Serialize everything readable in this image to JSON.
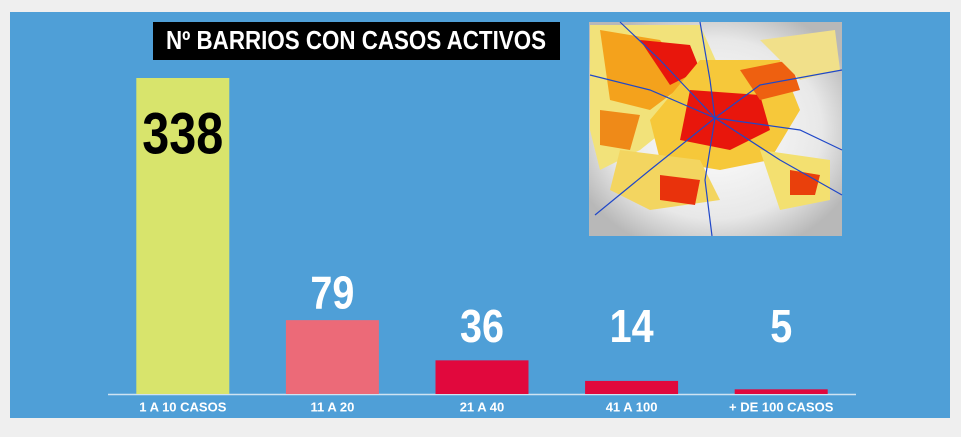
{
  "chart_data": {
    "type": "bar",
    "title": "Nº BARRIOS CON CASOS ACTIVOS",
    "categories": [
      "1 A 10 CASOS",
      "11 A 20",
      "21 A 40",
      "41 A 100",
      "+ DE 100 CASOS"
    ],
    "values": [
      338,
      79,
      36,
      14,
      5
    ],
    "colors": [
      "#d8e46c",
      "#ec6a78",
      "#e1083d",
      "#e1083d",
      "#e1083d"
    ]
  }
}
